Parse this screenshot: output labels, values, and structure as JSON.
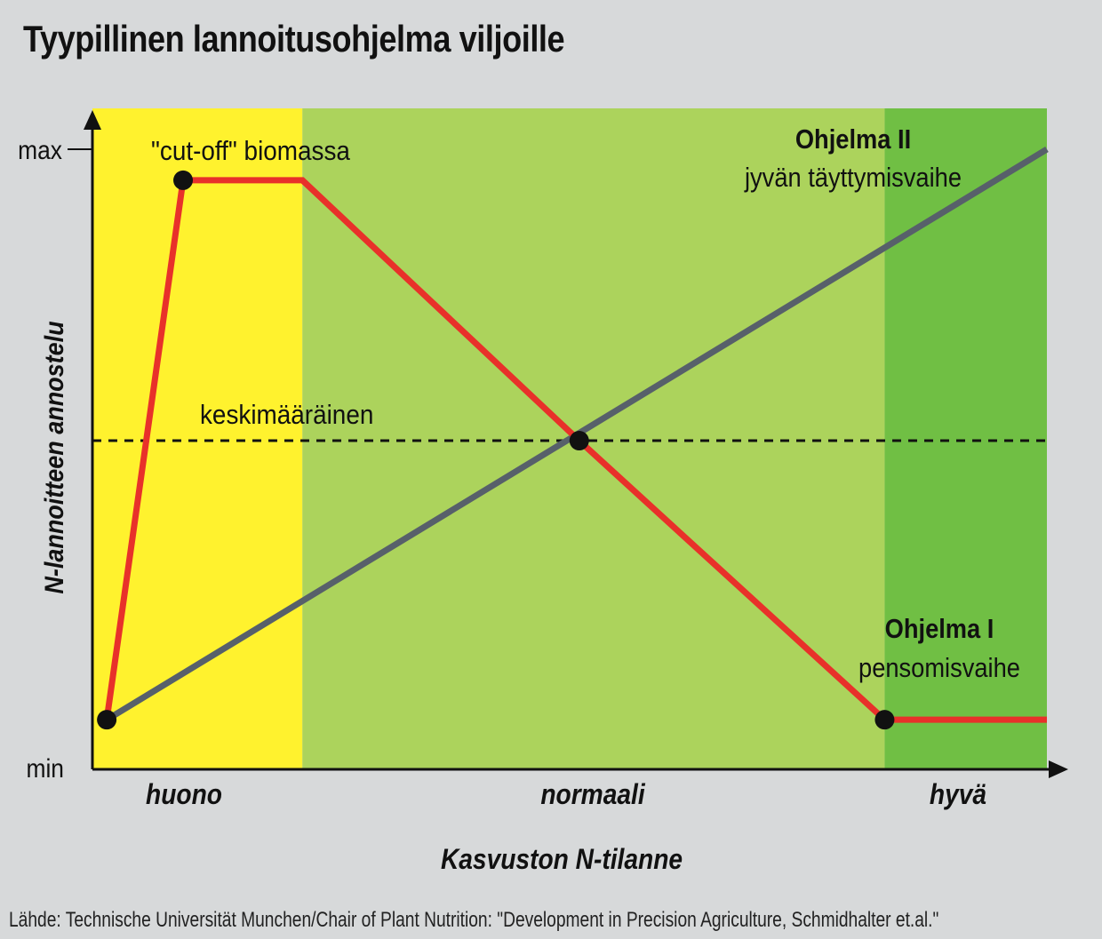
{
  "title": "Tyypillinen lannoitusohjelma viljoille",
  "source": "Lähde: Technische Universität Munchen/Chair of Plant Nutrition: \"Development in Precision Agriculture, Schmidhalter et.al.\"",
  "colors": {
    "zone_poor": "#fff22e",
    "zone_normal": "#acd35c",
    "zone_good": "#70bf44",
    "program_1_line": "#e8312a",
    "program_2_line": "#57606a",
    "average_line": "#111111",
    "point": "#111111"
  },
  "chart_data": {
    "type": "line",
    "title": "Tyypillinen lannoitusohjelma viljoille",
    "xlabel": "Kasvuston N-tilanne",
    "ylabel": "N-lannoitteen annostelu",
    "x_tick_labels": [
      "huono",
      "normaali",
      "hyvä"
    ],
    "y_tick_labels": [
      "min",
      "max"
    ],
    "xlim": [
      0,
      100
    ],
    "ylim": [
      0,
      100
    ],
    "zones": [
      {
        "from": 0,
        "to": 22,
        "color": "#fff22e"
      },
      {
        "from": 22,
        "to": 83,
        "color": "#acd35c"
      },
      {
        "from": 83,
        "to": 100,
        "color": "#70bf44"
      }
    ],
    "average_value": 53,
    "average_label": "keskimääräinen",
    "series": [
      {
        "name": "Ohjelma I",
        "subtitle": "pensomisvaihe",
        "color": "#e8312a",
        "points": [
          [
            1.5,
            8
          ],
          [
            9.5,
            95
          ],
          [
            22,
            95
          ],
          [
            51,
            53
          ],
          [
            83,
            8
          ],
          [
            100,
            8
          ]
        ],
        "markers": [
          0,
          1,
          3,
          4
        ]
      },
      {
        "name": "Ohjelma II",
        "subtitle": "jyvän täyttymisvaihe",
        "color": "#57606a",
        "points": [
          [
            1.5,
            8
          ],
          [
            100,
            100
          ]
        ],
        "markers": []
      }
    ],
    "annotations": [
      {
        "text": "\"cut-off\" biomassa"
      }
    ]
  }
}
